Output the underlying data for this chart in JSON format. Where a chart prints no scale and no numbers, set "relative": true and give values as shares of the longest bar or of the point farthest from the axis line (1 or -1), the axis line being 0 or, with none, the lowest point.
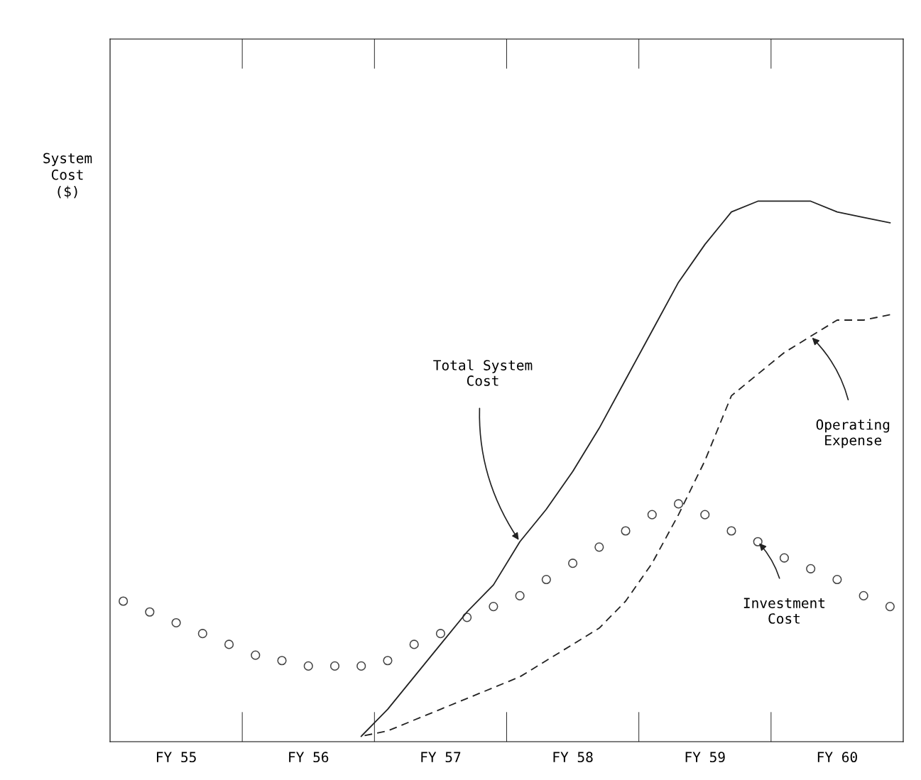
{
  "chart_data": {
    "type": "line",
    "relative": true,
    "ylabel": "System\nCost\n($)",
    "categories": [
      null,
      null,
      "FY 55",
      null,
      null,
      null,
      null,
      "FY 56",
      null,
      null,
      null,
      null,
      "FY 57",
      null,
      null,
      null,
      null,
      "FY 58",
      null,
      null,
      null,
      null,
      "FY 59",
      null,
      null,
      null,
      null,
      "FY 60",
      null,
      null
    ],
    "grid": false,
    "legend": false,
    "series": [
      {
        "line_style": "solid",
        "color": "#222222",
        "values": [
          null,
          null,
          null,
          null,
          null,
          null,
          null,
          null,
          null,
          0.01,
          0.06,
          0.12,
          0.18,
          0.24,
          0.29,
          0.37,
          0.43,
          0.5,
          0.58,
          0.67,
          0.76,
          0.85,
          0.92,
          0.98,
          1.0,
          1.0,
          1.0,
          0.98,
          0.97,
          0.96
        ]
      },
      {
        "line_style": "dashed",
        "color": "#222222",
        "values": [
          null,
          null,
          null,
          null,
          null,
          null,
          null,
          null,
          null,
          0.01,
          0.02,
          0.04,
          0.06,
          0.08,
          0.1,
          0.12,
          0.15,
          0.18,
          0.21,
          0.26,
          0.33,
          0.42,
          0.52,
          0.64,
          0.68,
          0.72,
          0.75,
          0.78,
          0.78,
          0.79
        ]
      },
      {
        "type": "scatter",
        "marker": "circle",
        "color": "#444444",
        "values": [
          0.26,
          0.24,
          0.22,
          0.2,
          0.18,
          0.16,
          0.15,
          0.14,
          0.14,
          0.14,
          0.15,
          0.18,
          0.2,
          0.23,
          0.25,
          0.27,
          0.3,
          0.33,
          0.36,
          0.39,
          0.42,
          0.44,
          0.42,
          0.39,
          0.37,
          0.34,
          0.32,
          0.3,
          0.27,
          0.25
        ]
      }
    ],
    "annotations": [
      "Total System\nCost",
      "Operating\nExpense",
      "Investment\nCost"
    ]
  }
}
